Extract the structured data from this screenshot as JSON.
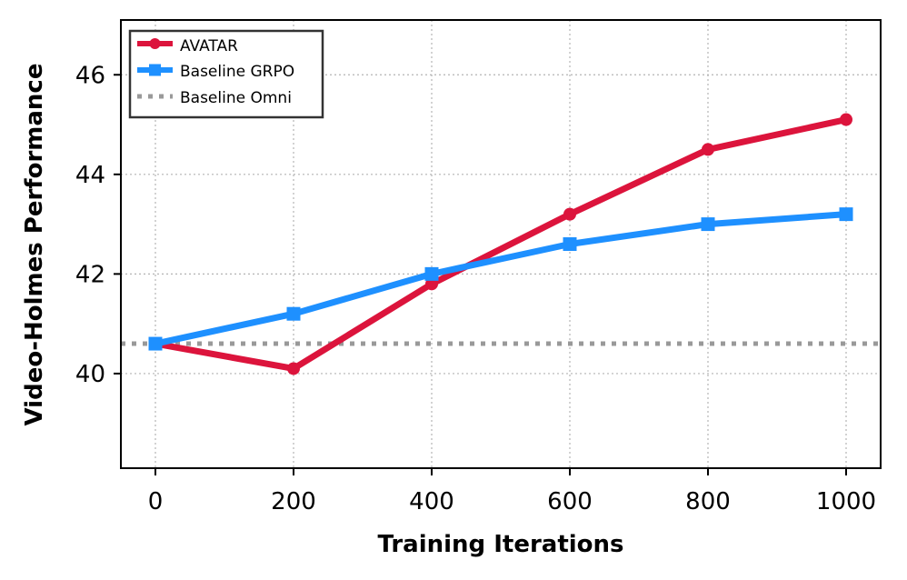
{
  "chart_data": {
    "type": "line",
    "title": "",
    "xlabel": "Training Iterations",
    "ylabel": "Video-Holmes Performance",
    "x": [
      0,
      200,
      400,
      600,
      800,
      1000
    ],
    "xlim": [
      -50,
      1050
    ],
    "ylim": [
      38.1,
      47.1
    ],
    "xticks": [
      0,
      200,
      400,
      600,
      800,
      1000
    ],
    "yticks": [
      40,
      42,
      44,
      46
    ],
    "xtick_labels": [
      "0",
      "200",
      "400",
      "600",
      "800",
      "1000"
    ],
    "ytick_labels": [
      "40",
      "42",
      "44",
      "46"
    ],
    "grid": true,
    "legend_position": "top-left",
    "series": [
      {
        "name": "AVATAR",
        "marker": "circle",
        "color": "#dc143c",
        "values": [
          40.6,
          40.1,
          41.8,
          43.2,
          44.5,
          45.1
        ]
      },
      {
        "name": "Baseline GRPO",
        "marker": "square",
        "color": "#1e90ff",
        "values": [
          40.6,
          41.2,
          42.0,
          42.6,
          43.0,
          43.2
        ]
      }
    ],
    "reference_lines": [
      {
        "name": "Baseline Omni",
        "y": 40.6,
        "style": "dotted",
        "color": "#999999"
      }
    ]
  }
}
